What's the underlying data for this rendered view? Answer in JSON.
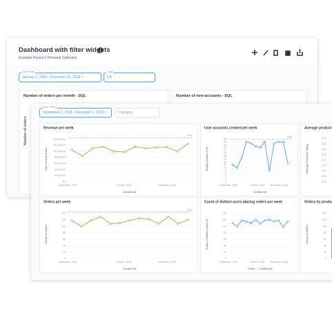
{
  "back": {
    "title": "Dashboard with filter widgets",
    "collection": "Example Person's Personal Collection",
    "filters": [
      {
        "label": "Date Filter",
        "value": "January 1, 2018 - December 31, 2018"
      },
      {
        "label": "State",
        "value": "CA"
      }
    ],
    "cards": [
      {
        "title": "Number of orders per month - SQL",
        "ylabel": "Number of orders"
      },
      {
        "title": "Number of new accounts - SQL"
      }
    ]
  },
  "front": {
    "filters": [
      {
        "label": "Date Filters",
        "value": "September 2, 2018 - December 1, 2018"
      },
      {
        "label": "Category"
      }
    ],
    "cards": [
      {
        "type": "line",
        "title": "Revenue per week",
        "ylabel": "Sum of order totals",
        "xlabel": "Created At",
        "color": "#84bb4c",
        "goal": 14500,
        "goal_label": "Goal",
        "ylim": [
          0,
          15000
        ],
        "yticks": [
          {
            "value": 0,
            "label": "$0"
          },
          {
            "value": 2000,
            "label": "$2,000.00"
          },
          {
            "value": 4000,
            "label": "$4,000.00"
          },
          {
            "value": 6000,
            "label": "$6,000.00"
          },
          {
            "value": 8000,
            "label": "$8,000.00"
          },
          {
            "value": 10000,
            "label": "$10,000.00"
          },
          {
            "value": 12000,
            "label": "$12,000.00"
          },
          {
            "value": 14000,
            "label": "$14,000.00"
          }
        ],
        "xticks": [
          "September, 2018",
          "October, 2018",
          "November, 2018"
        ],
        "values": [
          10500,
          8500,
          11000,
          11500,
          10000,
          9800,
          11500,
          11000,
          11300,
          11400,
          10000,
          12500
        ]
      },
      {
        "type": "line",
        "title": "User accounts created per week",
        "ylabel": "Distinct values of ID",
        "xlabel": "Created At",
        "color": "#509ee3",
        "goal": 30,
        "goal_label": "Goal",
        "ylim": [
          0,
          32
        ],
        "yticks": [
          0,
          2,
          4,
          6,
          8,
          10,
          12,
          14,
          16,
          18,
          20,
          22,
          24,
          26,
          28,
          30
        ],
        "xticks": [
          "September, 2018",
          "October, 2018",
          "November, 2018"
        ],
        "values": [
          12,
          10,
          17,
          28,
          27,
          25,
          24,
          28,
          8,
          27,
          28,
          28,
          13
        ]
      },
      {
        "type": "line",
        "title": "Average product rating",
        "ylabel": "Average of review rating",
        "ylim": [
          0,
          4.2
        ],
        "color": "#a989c5",
        "yticks": [
          {
            "value": 0,
            "label": "0.00"
          },
          {
            "value": 0.5,
            "label": "0.50"
          },
          {
            "value": 1,
            "label": "1.00"
          },
          {
            "value": 1.5,
            "label": "1.50"
          },
          {
            "value": 2,
            "label": "2.00"
          },
          {
            "value": 2.5,
            "label": "2.50"
          },
          {
            "value": 3,
            "label": "3.00"
          },
          {
            "value": 3.5,
            "label": "3.50"
          },
          {
            "value": 4,
            "label": "4.00"
          }
        ]
      },
      {
        "type": "line",
        "title": "Orders per week",
        "ylabel": "Count of orders",
        "xlabel": "Created At",
        "color": "#84bb4c",
        "goal": 145,
        "goal_label": "Goal",
        "ylim": [
          0,
          150
        ],
        "yticks": [
          0,
          20,
          40,
          60,
          80,
          100,
          120,
          140
        ],
        "xticks": [
          "September, 2018",
          "October, 2018",
          "November, 2018"
        ],
        "values": [
          118,
          100,
          118,
          130,
          108,
          110,
          118,
          125,
          122,
          108,
          130,
          108,
          120
        ]
      },
      {
        "type": "line",
        "title": "Count of distinct users placing orders per week",
        "ylabel": "Count of distinct users ID",
        "xlabel": "Order → Created At",
        "color": "#509ee3",
        "ylim": [
          0,
          150
        ],
        "yticks": [
          0,
          20,
          40,
          60,
          80,
          100,
          120,
          140
        ],
        "xticks": [
          "September, 2018",
          "October, 2018",
          "November, 2018"
        ],
        "values": [
          110,
          100,
          118,
          115,
          110,
          120,
          108,
          118,
          120,
          115,
          118,
          98,
          115
        ]
      },
      {
        "type": "bar",
        "title": "Orders by product",
        "ylabel": "Count of orders",
        "color": "#a989c5",
        "ylim": [
          0,
          150
        ],
        "yticks": [
          0,
          20,
          40,
          60,
          80,
          100,
          120,
          140
        ],
        "values": [
          95
        ]
      }
    ]
  }
}
